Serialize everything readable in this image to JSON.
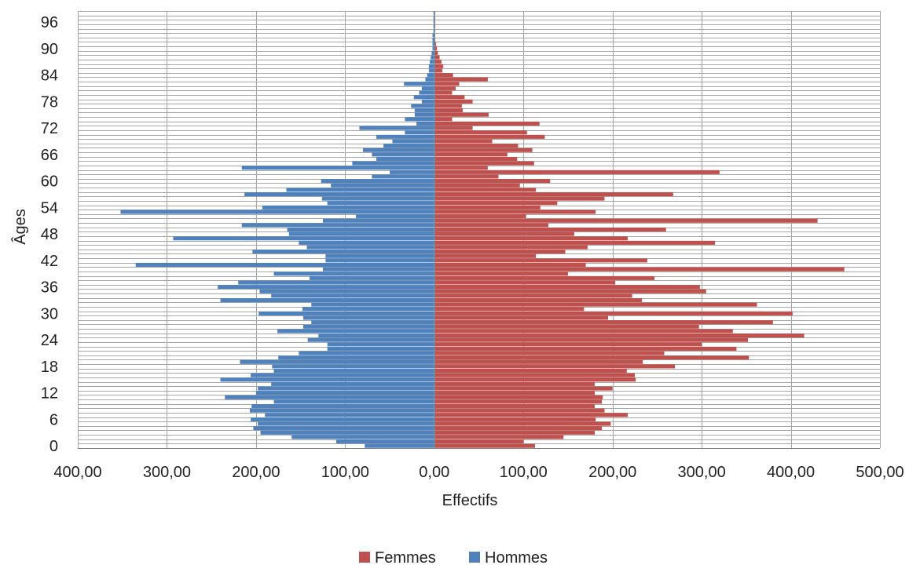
{
  "chart_data": {
    "type": "bar",
    "orientation": "horizontal",
    "subtype": "population-pyramid",
    "xlabel": "Effectifs",
    "ylabel": "Âges",
    "xlim": [
      -400,
      500
    ],
    "x_ticks": [
      -400,
      -300,
      -200,
      -100,
      0,
      100,
      200,
      300,
      400,
      500
    ],
    "x_tick_labels": [
      "400,00",
      "300,00",
      "200,00",
      "100,00",
      "0,00",
      "100,00",
      "200,00",
      "300,00",
      "400,00",
      "500,00"
    ],
    "y_ticks": [
      0,
      6,
      12,
      18,
      24,
      30,
      36,
      42,
      48,
      54,
      60,
      66,
      72,
      78,
      84,
      90,
      96
    ],
    "y_tick_labels": [
      "0",
      "6",
      "12",
      "18",
      "24",
      "30",
      "36",
      "42",
      "48",
      "54",
      "60",
      "66",
      "72",
      "78",
      "84",
      "90",
      "96"
    ],
    "ylim": [
      -0.5,
      98.5
    ],
    "grid": {
      "vertical": true,
      "horizontal": true
    },
    "legend_position": "bottom",
    "categories": [
      0,
      1,
      2,
      3,
      4,
      5,
      6,
      7,
      8,
      9,
      10,
      11,
      12,
      13,
      14,
      15,
      16,
      17,
      18,
      19,
      20,
      21,
      22,
      23,
      24,
      25,
      26,
      27,
      28,
      29,
      30,
      31,
      32,
      33,
      34,
      35,
      36,
      37,
      38,
      39,
      40,
      41,
      42,
      43,
      44,
      45,
      46,
      47,
      48,
      49,
      50,
      51,
      52,
      53,
      54,
      55,
      56,
      57,
      58,
      59,
      60,
      61,
      62,
      63,
      64,
      65,
      66,
      67,
      68,
      69,
      70,
      71,
      72,
      73,
      74,
      75,
      76,
      77,
      78,
      79,
      80,
      81,
      82,
      83,
      84,
      85,
      86,
      87,
      88,
      89,
      90,
      91,
      92,
      93,
      94,
      95,
      96,
      97,
      98
    ],
    "series": [
      {
        "name": "Femmes",
        "color": "#c0504d",
        "values": [
          113,
          100,
          145,
          180,
          188,
          198,
          181,
          217,
          191,
          180,
          188,
          189,
          180,
          200,
          180,
          226,
          225,
          216,
          270,
          234,
          353,
          258,
          339,
          300,
          352,
          415,
          335,
          297,
          380,
          195,
          402,
          168,
          362,
          233,
          222,
          305,
          298,
          203,
          247,
          150,
          460,
          170,
          239,
          114,
          147,
          172,
          315,
          217,
          157,
          260,
          128,
          430,
          103,
          181,
          119,
          138,
          191,
          268,
          114,
          96,
          130,
          72,
          320,
          60,
          112,
          93,
          82,
          110,
          94,
          65,
          124,
          104,
          43,
          118,
          20,
          61,
          32,
          31,
          43,
          34,
          20,
          24,
          28,
          60,
          21,
          9,
          10,
          8,
          6,
          4,
          3,
          2,
          1,
          1,
          0,
          1,
          0,
          0,
          0
        ],
        "display_values": [
          "113,00",
          "100,00",
          "145,00",
          "180,00",
          "188,00",
          "198,00",
          "181,00",
          "217,00",
          "191,00",
          "180,00",
          "188,00",
          "189,00",
          "180,00",
          "200,00",
          "180,00",
          "226,00",
          "225,00",
          "216,00",
          "270,00",
          "234,00",
          "353,00",
          "258,00",
          "339,00",
          "300,00",
          "352,00",
          "415,00",
          "335,00",
          "297,00",
          "380,00",
          "195,00",
          "402,00",
          "168,00",
          "362,00",
          "233,00",
          "222,00",
          "305,00",
          "298,00",
          "203,00",
          "247,00",
          "150,00",
          "460,00",
          "170,00",
          "239,00",
          "114,00",
          "147,00",
          "172,00",
          "315,00",
          "217,00",
          "157,00",
          "260,00",
          "128,00",
          "430,00",
          "103,00",
          "181,00",
          "119,00",
          "138,00",
          "191,00",
          "268,00",
          "114,00",
          "96,00",
          "130,00",
          "72,00",
          "320,00",
          "60,00",
          "112,00",
          "93,00",
          "82,00",
          "110,00",
          "94,00",
          "65,00",
          "124,00",
          "104,00",
          "43,00",
          "118,00",
          "20,00",
          "61,00",
          "32,00",
          "31,00",
          "43,00",
          "34,00",
          "20,00",
          "24,00",
          "28,00",
          "60,00",
          "21,00",
          "9,00",
          "10,00",
          "8,00",
          "6,00",
          "4,00",
          "3,00",
          "2,00",
          "1,00",
          "1,00",
          "0,00",
          "1,00",
          "0,00",
          "0,00",
          "0,00"
        ]
      },
      {
        "name": "Hommes",
        "color": "#4f81bd",
        "values": [
          -78,
          -110,
          -160,
          -195,
          -203,
          -198,
          -206,
          -190,
          -207,
          -205,
          -180,
          -235,
          -200,
          -198,
          -183,
          -240,
          -206,
          -180,
          -182,
          -218,
          -175,
          -152,
          -120,
          -120,
          -142,
          -130,
          -176,
          -147,
          -138,
          -147,
          -197,
          -148,
          -138,
          -240,
          -183,
          -196,
          -243,
          -220,
          -140,
          -180,
          -125,
          -335,
          -122,
          -122,
          -204,
          -143,
          -152,
          -293,
          -163,
          -165,
          -216,
          -125,
          -88,
          -352,
          -193,
          -120,
          -126,
          -213,
          -166,
          -116,
          -127,
          -70,
          -50,
          -216,
          -92,
          -65,
          -70,
          -80,
          -57,
          -47,
          -65,
          -33,
          -84,
          -20,
          -33,
          -22,
          -22,
          -26,
          -14,
          -23,
          -17,
          -14,
          -34,
          -10,
          -8,
          -6,
          -6,
          -5,
          -4,
          -3,
          -2,
          -2,
          -2,
          -2,
          -1,
          -1,
          -1,
          -1,
          -1
        ],
        "display_values": [
          "78,00",
          "110,00",
          "160,00",
          "195,00",
          "203,00",
          "198,00",
          "206,00",
          "190,00",
          "207,00",
          "205,00",
          "180,00",
          "235,00",
          "200,00",
          "198,00",
          "183,00",
          "240,00",
          "206,00",
          "180,00",
          "182,00",
          "218,00",
          "175,00",
          "152,00",
          "120,00",
          "120,00",
          "142,00",
          "130,00",
          "176,00",
          "147,00",
          "138,00",
          "147,00",
          "197,00",
          "148,00",
          "138,00",
          "240,00",
          "183,00",
          "196,00",
          "243,00",
          "220,00",
          "140,00",
          "180,00",
          "125,00",
          "335,00",
          "122,00",
          "122,00",
          "204,00",
          "143,00",
          "152,00",
          "293,00",
          "163,00",
          "165,00",
          "216,00",
          "125,00",
          "88,00",
          "352,00",
          "193,00",
          "120,00",
          "126,00",
          "213,00",
          "166,00",
          "116,00",
          "127,00",
          "70,00",
          "50,00",
          "216,00",
          "92,00",
          "65,00",
          "70,00",
          "80,00",
          "57,00",
          "47,00",
          "65,00",
          "33,00",
          "84,00",
          "20,00",
          "33,00",
          "22,00",
          "22,00",
          "26,00",
          "14,00",
          "23,00",
          "17,00",
          "14,00",
          "34,00",
          "10,00",
          "8,00",
          "6,00",
          "6,00",
          "5,00",
          "4,00",
          "3,00",
          "2,00",
          "2,00",
          "2,00",
          "2,00",
          "1,00",
          "1,00",
          "1,00",
          "1,00",
          "1,00"
        ]
      }
    ],
    "legend": [
      {
        "label": "Femmes",
        "color": "#c0504d"
      },
      {
        "label": "Hommes",
        "color": "#4f81bd"
      }
    ]
  }
}
